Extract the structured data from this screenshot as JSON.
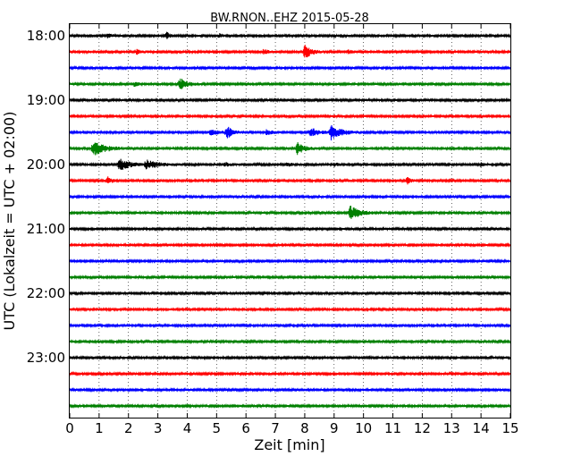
{
  "chart_data": {
    "type": "line",
    "title": "BW.RNON..EHZ 2015-05-28",
    "xlabel": "Zeit  [min]",
    "ylabel": "UTC (Lokalzeit = UTC + 02:00)",
    "xlim": [
      0,
      15
    ],
    "xticks": [
      "0",
      "1",
      "2",
      "3",
      "4",
      "5",
      "6",
      "7",
      "8",
      "9",
      "10",
      "11",
      "12",
      "13",
      "14",
      "15"
    ],
    "grid": "vertical dotted at each minute",
    "ytick_labels": [
      "18:00",
      "19:00",
      "20:00",
      "21:00",
      "22:00",
      "23:00"
    ],
    "ytick_traces": [
      0,
      4,
      8,
      12,
      16,
      20
    ],
    "trace_colors": [
      "#000000",
      "#ff0000",
      "#0000ff",
      "#008000"
    ],
    "traces": [
      {
        "start": "18:00",
        "events": [
          {
            "t": 1.3,
            "amp": 0.5,
            "dur": 0.3
          },
          {
            "t": 3.3,
            "amp": 0.9,
            "dur": 0.2
          },
          {
            "t": 5.1,
            "amp": 0.5,
            "dur": 0.2
          }
        ]
      },
      {
        "start": "18:15",
        "events": [
          {
            "t": 2.3,
            "amp": 0.7,
            "dur": 0.3
          },
          {
            "t": 6.6,
            "amp": 0.6,
            "dur": 0.3
          },
          {
            "t": 8.0,
            "amp": 1.8,
            "dur": 0.4
          },
          {
            "t": 9.5,
            "amp": 0.5,
            "dur": 0.2
          }
        ]
      },
      {
        "start": "18:30",
        "events": []
      },
      {
        "start": "18:45",
        "events": [
          {
            "t": 2.2,
            "amp": 0.5,
            "dur": 0.3
          },
          {
            "t": 3.75,
            "amp": 1.5,
            "dur": 0.45
          }
        ]
      },
      {
        "start": "19:00",
        "events": []
      },
      {
        "start": "19:15",
        "events": []
      },
      {
        "start": "19:30",
        "events": [
          {
            "t": 4.8,
            "amp": 0.7,
            "dur": 0.5
          },
          {
            "t": 5.35,
            "amp": 1.5,
            "dur": 0.4
          },
          {
            "t": 6.7,
            "amp": 0.6,
            "dur": 0.4
          },
          {
            "t": 8.2,
            "amp": 1.2,
            "dur": 0.5
          },
          {
            "t": 8.9,
            "amp": 1.9,
            "dur": 0.6
          }
        ]
      },
      {
        "start": "19:45",
        "events": [
          {
            "t": 0.8,
            "amp": 2.0,
            "dur": 0.7
          },
          {
            "t": 7.75,
            "amp": 1.5,
            "dur": 0.4
          }
        ]
      },
      {
        "start": "20:00",
        "events": [
          {
            "t": 1.7,
            "amp": 1.6,
            "dur": 0.6
          },
          {
            "t": 2.6,
            "amp": 1.1,
            "dur": 0.8
          },
          {
            "t": 5.3,
            "amp": 0.5,
            "dur": 0.3
          },
          {
            "t": 7.4,
            "amp": 0.5,
            "dur": 0.3
          },
          {
            "t": 9.0,
            "amp": 0.5,
            "dur": 0.3
          },
          {
            "t": 14.0,
            "amp": 0.5,
            "dur": 0.2
          }
        ]
      },
      {
        "start": "20:15",
        "events": [
          {
            "t": 1.3,
            "amp": 1.3,
            "dur": 0.2
          },
          {
            "t": 11.5,
            "amp": 0.9,
            "dur": 0.2
          }
        ]
      },
      {
        "start": "20:30",
        "events": []
      },
      {
        "start": "20:45",
        "events": [
          {
            "t": 9.55,
            "amp": 1.8,
            "dur": 0.6
          }
        ]
      },
      {
        "start": "21:00",
        "events": []
      },
      {
        "start": "21:15",
        "events": []
      },
      {
        "start": "21:30",
        "events": []
      },
      {
        "start": "21:45",
        "events": []
      },
      {
        "start": "22:00",
        "events": []
      },
      {
        "start": "22:15",
        "events": []
      },
      {
        "start": "22:30",
        "events": []
      },
      {
        "start": "22:45",
        "events": []
      },
      {
        "start": "23:00",
        "events": []
      },
      {
        "start": "23:15",
        "events": []
      },
      {
        "start": "23:30",
        "events": []
      },
      {
        "start": "23:45",
        "events": []
      }
    ]
  }
}
